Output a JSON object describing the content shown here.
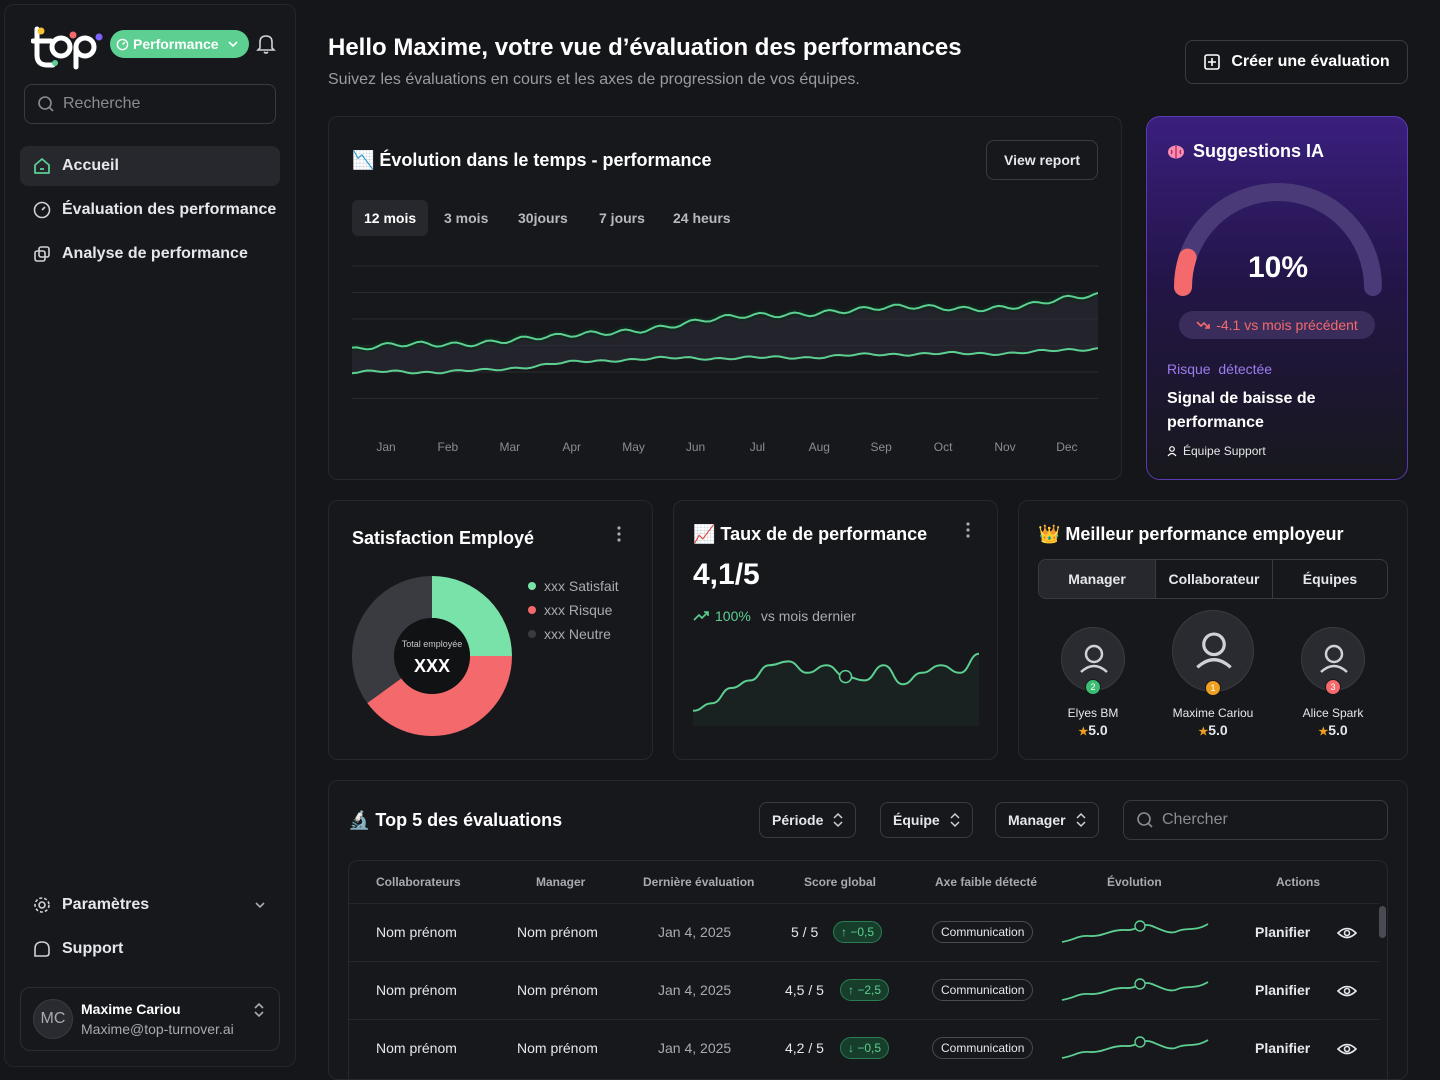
{
  "brand": {
    "logo_text": "top",
    "module_label": "Performance"
  },
  "search": {
    "placeholder": "Recherche"
  },
  "nav": {
    "items": [
      {
        "label": "Accueil"
      },
      {
        "label": "Évaluation des performance"
      },
      {
        "label": "Analyse de performance"
      }
    ],
    "bottom": [
      {
        "label": "Paramètres"
      },
      {
        "label": "Support"
      }
    ]
  },
  "user": {
    "initials": "MC",
    "name": "Maxime Cariou",
    "email": "Maxime@top-turnover.ai"
  },
  "header": {
    "title": "Hello Maxime, votre vue d’évaluation des performances",
    "subtitle": "Suivez les évaluations en cours et les axes de progression de vos équipes.",
    "create_label": "Créer une évaluation"
  },
  "evolution": {
    "title": "📉 Évolution dans le temps - performance",
    "report_label": "View report",
    "tabs": [
      "12 mois",
      "3 mois",
      "30jours",
      "7 jours",
      "24 heurs"
    ],
    "chart_data": {
      "type": "line",
      "categories": [
        "Jan",
        "Feb",
        "Mar",
        "Apr",
        "May",
        "Jun",
        "Jul",
        "Aug",
        "Sep",
        "Oct",
        "Nov",
        "Dec"
      ],
      "series": [
        {
          "name": "Série 1",
          "color": "#5ccf91",
          "values": [
            55,
            60,
            62,
            64,
            70,
            75,
            80,
            84,
            85,
            86,
            88,
            94
          ]
        },
        {
          "name": "Série 2",
          "color": "#5ccf91",
          "values": [
            40,
            40,
            41,
            46,
            49,
            50,
            50,
            51,
            53,
            53,
            54,
            57
          ]
        }
      ],
      "ylim": [
        20,
        120
      ]
    }
  },
  "ai": {
    "title": "Suggestions IA",
    "percent_label": "10%",
    "percent": 10,
    "delta": "-4.1 vs mois précédent",
    "risk_a": "Risque",
    "risk_b": "détectée",
    "signal": "Signal de baisse de performance",
    "team": "Équipe Support"
  },
  "satisfaction": {
    "title": "Satisfaction Employé",
    "center_label": "Total employée",
    "center_value": "XXX",
    "chart_data": {
      "type": "pie",
      "slices": [
        {
          "label": "xxx Satisfait",
          "value": 25,
          "color": "#79e2a8"
        },
        {
          "label": "xxx Risque",
          "value": 40,
          "color": "#f4696b"
        },
        {
          "label": "xxx Neutre",
          "value": 35,
          "color": "#3a3b41"
        }
      ]
    }
  },
  "rate": {
    "title": "📈 Taux de de performance",
    "value": "4,1/5",
    "delta": "100%",
    "delta_text": "vs mois dernier",
    "chart_data": {
      "type": "line",
      "values": [
        2,
        3,
        5,
        6,
        8,
        8.5,
        7,
        8,
        6.5,
        6,
        8,
        5.5,
        7,
        8,
        7,
        9.5
      ],
      "ylim": [
        0,
        10
      ]
    }
  },
  "best": {
    "title": "👑 Meilleur performance employeur",
    "segments": [
      "Manager",
      "Collaborateur",
      "Équipes"
    ],
    "employees": [
      {
        "name": "Elyes BM",
        "rank": "2",
        "score": "5.0",
        "color": "#3bbd74"
      },
      {
        "name": "Maxime Cariou",
        "rank": "1",
        "score": "5.0",
        "color": "#f0a020"
      },
      {
        "name": "Alice Spark",
        "rank": "3",
        "score": "5.0",
        "color": "#f4696b"
      }
    ]
  },
  "table": {
    "title": "🔬 Top 5 des évaluations",
    "filters": [
      "Période",
      "Équipe",
      "Manager"
    ],
    "search_placeholder": "Chercher",
    "headers": [
      "Collaborateurs",
      "Manager",
      "Dernière évaluation",
      "Score global",
      "Axe faible détecté",
      "Évolution",
      "Actions"
    ],
    "rows": [
      {
        "collab": "Nom prénom",
        "manager": "Nom prénom",
        "date": "Jan 4, 2025",
        "score": "5 / 5",
        "delta": "↑ −0,5",
        "axis": "Communication",
        "action": "Planifier"
      },
      {
        "collab": "Nom prénom",
        "manager": "Nom prénom",
        "date": "Jan 4, 2025",
        "score": "4,5 / 5",
        "delta": "↑ −2,5",
        "axis": "Communication",
        "action": "Planifier"
      },
      {
        "collab": "Nom prénom",
        "manager": "Nom prénom",
        "date": "Jan 4, 2025",
        "score": "4,2 / 5",
        "delta": "↓ −0,5",
        "axis": "Communication",
        "action": "Planifier"
      }
    ]
  }
}
